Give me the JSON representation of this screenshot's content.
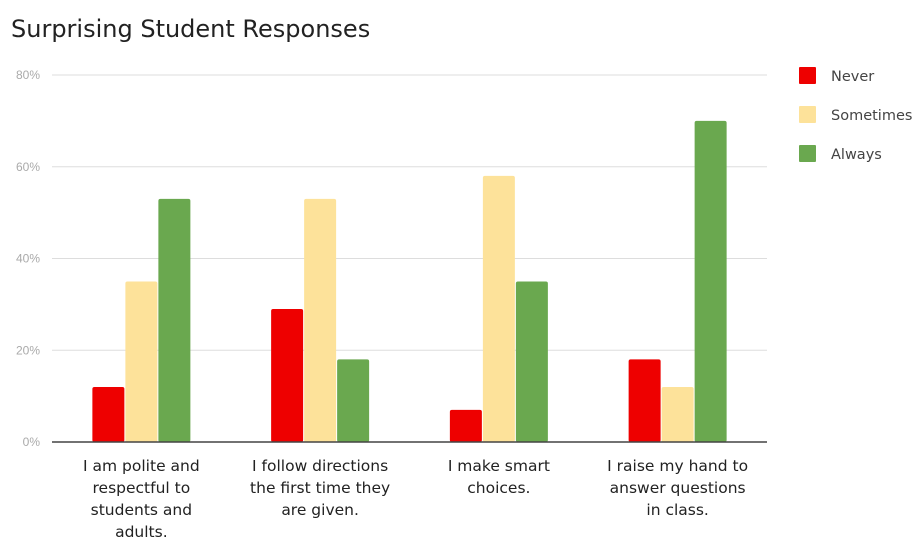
{
  "chart_data": {
    "type": "bar",
    "title": "Surprising Student Responses",
    "categories": [
      [
        "I am polite and",
        "respectful to",
        "students and",
        "adults."
      ],
      [
        "I follow directions",
        "the first time they",
        "are given."
      ],
      [
        "I make smart",
        "choices."
      ],
      [
        "I raise my hand to",
        "answer questions",
        "in class."
      ]
    ],
    "series": [
      {
        "name": "Never",
        "color": "#ee0000",
        "values": [
          12,
          29,
          7,
          18
        ]
      },
      {
        "name": "Sometimes",
        "color": "#fde29a",
        "values": [
          35,
          53,
          58,
          12
        ]
      },
      {
        "name": "Always",
        "color": "#6aa84f",
        "values": [
          53,
          18,
          35,
          70
        ]
      }
    ],
    "yticks": [
      "0%",
      "20%",
      "40%",
      "60%",
      "80%"
    ],
    "ylim": [
      0,
      80
    ],
    "grid": true,
    "legend_position": "right"
  }
}
